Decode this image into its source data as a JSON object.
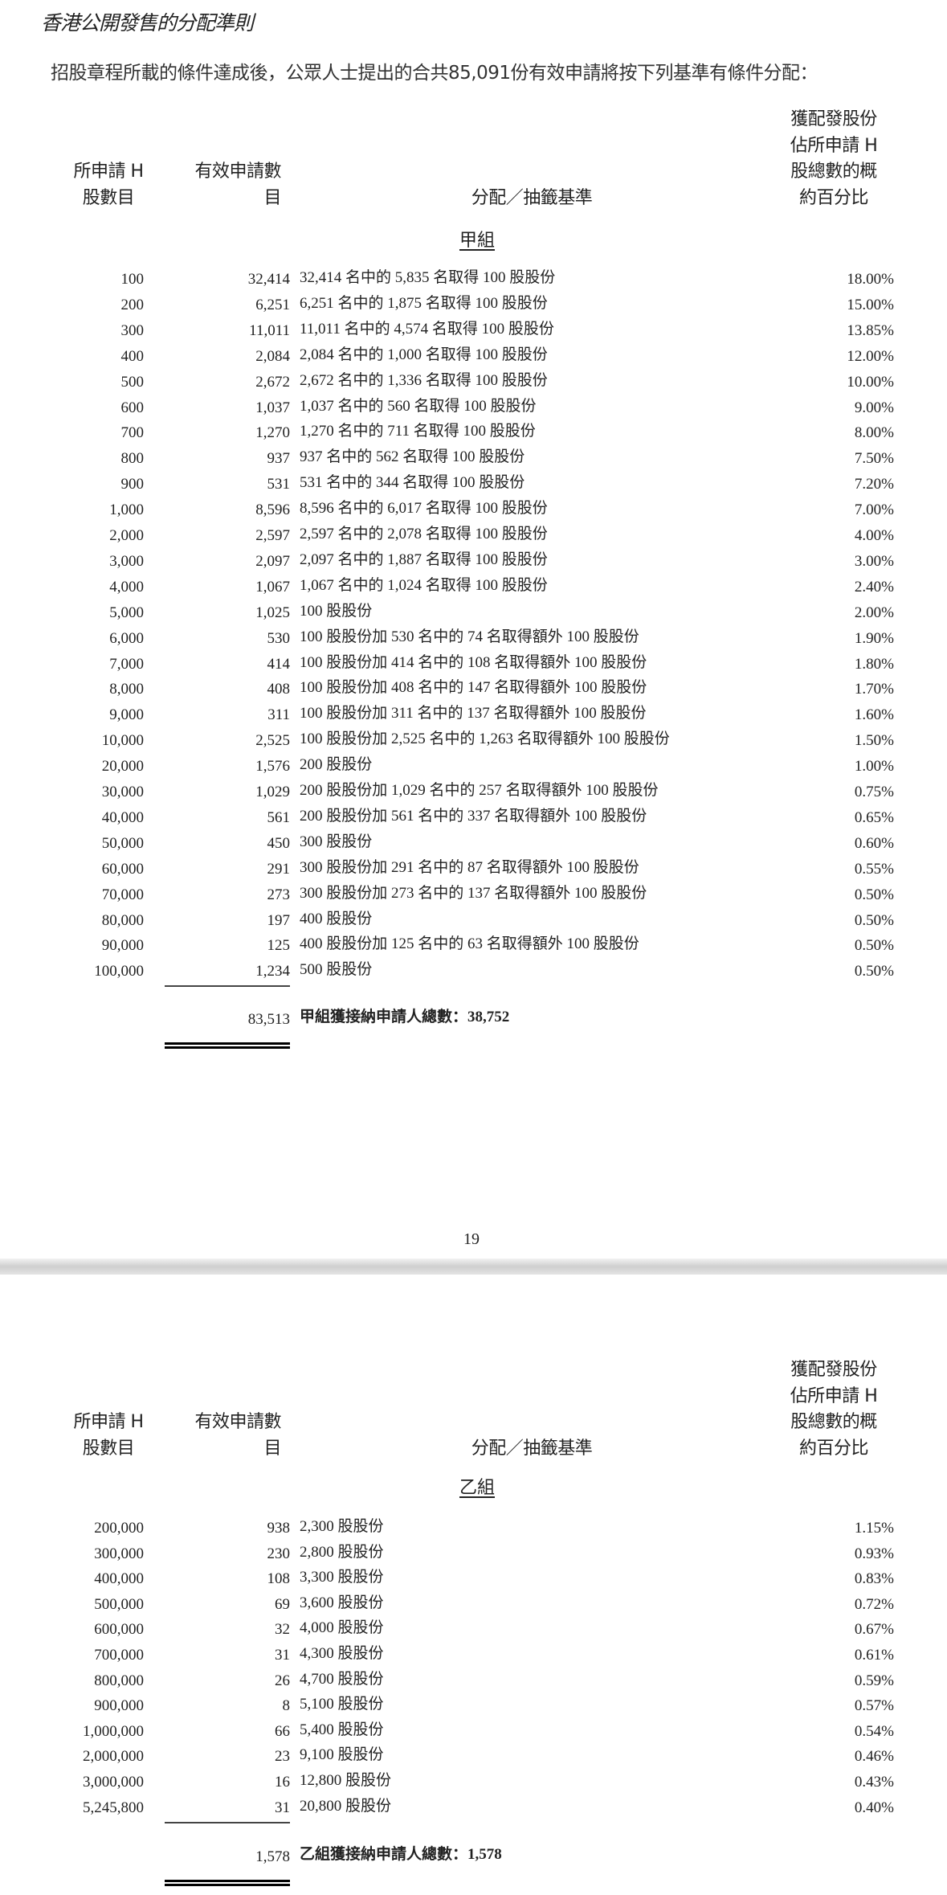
{
  "title": "香港公開發售的分配準則",
  "intro": "招股章程所載的條件達成後，公眾人士提出的合共85,091份有效申請將按下列基準有條件分配：",
  "headers": {
    "col1": [
      "所申請 H",
      "股數目"
    ],
    "col2": [
      "有效申請數",
      "目"
    ],
    "col3": "分配／抽籤基準",
    "col4": [
      "獲配發股份",
      "佔所申請 H",
      "股總數的概",
      "約百分比"
    ]
  },
  "page_number": "19",
  "group_a": {
    "name": "甲組",
    "rows": [
      [
        "100",
        "32,414",
        "32,414 名中的 5,835 名取得 100 股股份",
        "18.00%"
      ],
      [
        "200",
        "6,251",
        "6,251 名中的 1,875 名取得 100 股股份",
        "15.00%"
      ],
      [
        "300",
        "11,011",
        "11,011 名中的 4,574 名取得 100 股股份",
        "13.85%"
      ],
      [
        "400",
        "2,084",
        "2,084 名中的 1,000 名取得 100 股股份",
        "12.00%"
      ],
      [
        "500",
        "2,672",
        "2,672 名中的 1,336 名取得 100 股股份",
        "10.00%"
      ],
      [
        "600",
        "1,037",
        "1,037 名中的 560 名取得 100 股股份",
        "9.00%"
      ],
      [
        "700",
        "1,270",
        "1,270 名中的 711 名取得 100 股股份",
        "8.00%"
      ],
      [
        "800",
        "937",
        "937 名中的 562 名取得 100 股股份",
        "7.50%"
      ],
      [
        "900",
        "531",
        "531 名中的 344 名取得 100 股股份",
        "7.20%"
      ],
      [
        "1,000",
        "8,596",
        "8,596 名中的 6,017 名取得 100 股股份",
        "7.00%"
      ],
      [
        "2,000",
        "2,597",
        "2,597 名中的 2,078 名取得 100 股股份",
        "4.00%"
      ],
      [
        "3,000",
        "2,097",
        "2,097 名中的 1,887 名取得 100 股股份",
        "3.00%"
      ],
      [
        "4,000",
        "1,067",
        "1,067 名中的 1,024 名取得 100 股股份",
        "2.40%"
      ],
      [
        "5,000",
        "1,025",
        "100 股股份",
        "2.00%"
      ],
      [
        "6,000",
        "530",
        "100 股股份加 530 名中的 74 名取得額外 100 股股份",
        "1.90%"
      ],
      [
        "7,000",
        "414",
        "100 股股份加 414 名中的 108 名取得額外 100 股股份",
        "1.80%"
      ],
      [
        "8,000",
        "408",
        "100 股股份加 408 名中的 147 名取得額外 100 股股份",
        "1.70%"
      ],
      [
        "9,000",
        "311",
        "100 股股份加 311 名中的 137 名取得額外 100 股股份",
        "1.60%"
      ],
      [
        "10,000",
        "2,525",
        "100 股股份加 2,525 名中的 1,263 名取得額外 100 股股份",
        "1.50%"
      ],
      [
        "20,000",
        "1,576",
        "200 股股份",
        "1.00%"
      ],
      [
        "30,000",
        "1,029",
        "200 股股份加 1,029 名中的 257 名取得額外 100 股股份",
        "0.75%"
      ],
      [
        "40,000",
        "561",
        "200 股股份加 561 名中的 337 名取得額外 100 股股份",
        "0.65%"
      ],
      [
        "50,000",
        "450",
        "300 股股份",
        "0.60%"
      ],
      [
        "60,000",
        "291",
        "300 股股份加 291 名中的 87 名取得額外 100 股股份",
        "0.55%"
      ],
      [
        "70,000",
        "273",
        "300 股股份加 273 名中的 137 名取得額外 100 股股份",
        "0.50%"
      ],
      [
        "80,000",
        "197",
        "400 股股份",
        "0.50%"
      ],
      [
        "90,000",
        "125",
        "400 股股份加 125 名中的 63 名取得額外 100 股股份",
        "0.50%"
      ],
      [
        "100,000",
        "1,234",
        "500 股股份",
        "0.50%"
      ]
    ],
    "total": "83,513",
    "total_label": "甲組獲接納申請人總數：38,752"
  },
  "group_b": {
    "name": "乙組",
    "rows": [
      [
        "200,000",
        "938",
        "2,300 股股份",
        "1.15%"
      ],
      [
        "300,000",
        "230",
        "2,800 股股份",
        "0.93%"
      ],
      [
        "400,000",
        "108",
        "3,300 股股份",
        "0.83%"
      ],
      [
        "500,000",
        "69",
        "3,600 股股份",
        "0.72%"
      ],
      [
        "600,000",
        "32",
        "4,000 股股份",
        "0.67%"
      ],
      [
        "700,000",
        "31",
        "4,300 股股份",
        "0.61%"
      ],
      [
        "800,000",
        "26",
        "4,700 股股份",
        "0.59%"
      ],
      [
        "900,000",
        "8",
        "5,100 股股份",
        "0.57%"
      ],
      [
        "1,000,000",
        "66",
        "5,400 股股份",
        "0.54%"
      ],
      [
        "2,000,000",
        "23",
        "9,100 股股份",
        "0.46%"
      ],
      [
        "3,000,000",
        "16",
        "12,800 股股份",
        "0.43%"
      ],
      [
        "5,245,800",
        "31",
        "20,800 股股份",
        "0.40%"
      ]
    ],
    "total": "1,578",
    "total_label": "乙組獲接納申請人總數：1,578"
  }
}
